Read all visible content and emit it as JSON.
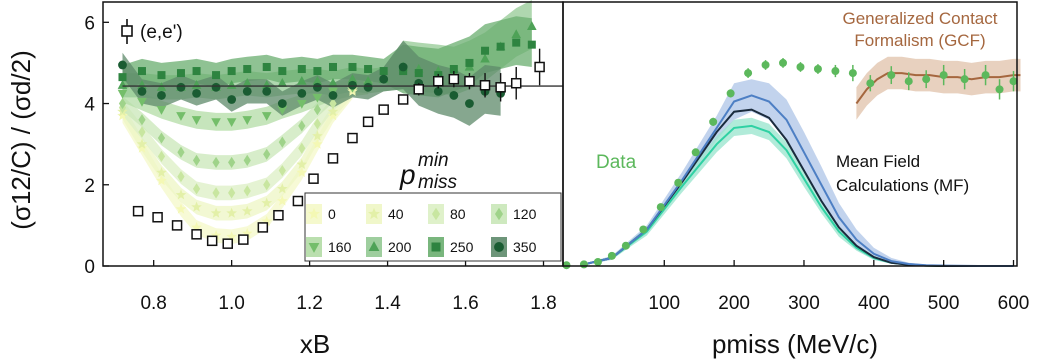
{
  "figure": {
    "y_axis_title": "(σ12/C) / (σd/2)",
    "colors": {
      "open_square": "#111111",
      "data_green": "#5cb85c",
      "gcf": "#a5673f",
      "mf_blue": "#4d7fc4",
      "mf_blue_band": "#b3c8e8",
      "mf_navy": "#1a2b3d",
      "mf_teal": "#2fd1a3",
      "mf_teal_band": "#9ee6cf",
      "reference_line": "#333333"
    }
  },
  "chart_data": [
    {
      "type": "scatter",
      "panel": "left",
      "xlabel": "xB",
      "ylabel": "(σ12/C) / (σd/2)",
      "xlim": [
        0.67,
        1.85
      ],
      "ylim": [
        0,
        6.5
      ],
      "x_ticks": [
        0.8,
        1.0,
        1.2,
        1.4,
        1.6,
        1.8
      ],
      "y_ticks": [
        0,
        2,
        4,
        6
      ],
      "grid": false,
      "reference_line_y": 4.43,
      "annotation_label": "(e,e')",
      "legend_title": "p_miss^min",
      "legend_placement": "lower-right",
      "open_square_series": {
        "name": "(e,e')",
        "x": [
          0.76,
          0.81,
          0.86,
          0.91,
          0.95,
          0.99,
          1.03,
          1.08,
          1.12,
          1.17,
          1.21,
          1.26,
          1.31,
          1.35,
          1.39,
          1.44,
          1.48,
          1.53,
          1.57,
          1.61,
          1.65,
          1.69,
          1.73,
          1.79
        ],
        "y": [
          1.35,
          1.2,
          1.0,
          0.78,
          0.62,
          0.55,
          0.65,
          0.95,
          1.25,
          1.6,
          2.15,
          2.65,
          3.15,
          3.55,
          3.85,
          4.1,
          4.35,
          4.55,
          4.6,
          4.55,
          4.45,
          4.4,
          4.5,
          4.9
        ],
        "err": [
          0.06,
          0.06,
          0.05,
          0.05,
          0.05,
          0.05,
          0.05,
          0.05,
          0.06,
          0.06,
          0.07,
          0.08,
          0.08,
          0.1,
          0.1,
          0.12,
          0.15,
          0.18,
          0.2,
          0.2,
          0.3,
          0.35,
          0.4,
          0.45
        ]
      },
      "series": [
        {
          "name": "0",
          "marker": "star",
          "color": "#f4f8b4",
          "band": "#f4f8c8",
          "x": [
            0.72,
            0.77,
            0.82,
            0.87,
            0.91,
            0.96,
            1.0,
            1.04,
            1.09,
            1.13,
            1.18,
            1.22,
            1.26,
            1.31
          ],
          "y": [
            3.7,
            2.9,
            2.1,
            1.4,
            0.95,
            0.75,
            0.72,
            0.8,
            1.1,
            1.6,
            2.3,
            3.0,
            3.7,
            4.3
          ]
        },
        {
          "name": "40",
          "marker": "star",
          "color": "#e3f0a8",
          "band": "#eef6c4",
          "x": [
            0.72,
            0.77,
            0.82,
            0.87,
            0.91,
            0.96,
            1.0,
            1.04,
            1.09,
            1.13,
            1.18,
            1.22,
            1.26,
            1.31
          ],
          "y": [
            3.8,
            3.0,
            2.3,
            1.75,
            1.45,
            1.3,
            1.3,
            1.35,
            1.55,
            1.9,
            2.5,
            3.2,
            3.8,
            4.35
          ]
        },
        {
          "name": "80",
          "marker": "diamond",
          "color": "#c8e6a0",
          "band": "#dcefc4",
          "x": [
            0.72,
            0.77,
            0.82,
            0.87,
            0.91,
            0.96,
            1.0,
            1.04,
            1.09,
            1.13,
            1.18,
            1.22,
            1.26,
            1.31
          ],
          "y": [
            3.9,
            3.3,
            2.7,
            2.2,
            1.9,
            1.8,
            1.8,
            1.85,
            2.0,
            2.35,
            2.9,
            3.5,
            4.0,
            4.4
          ]
        },
        {
          "name": "120",
          "marker": "diamond",
          "color": "#9fd38a",
          "band": "#c9e7b8",
          "x": [
            0.72,
            0.77,
            0.82,
            0.87,
            0.91,
            0.96,
            1.0,
            1.04,
            1.09,
            1.13,
            1.18,
            1.22,
            1.26,
            1.31
          ],
          "y": [
            4.0,
            3.6,
            3.15,
            2.8,
            2.6,
            2.55,
            2.55,
            2.6,
            2.75,
            3.05,
            3.45,
            3.85,
            4.2,
            4.45
          ]
        },
        {
          "name": "160",
          "marker": "tri-down",
          "color": "#74be6a",
          "band": "#b3dca5",
          "x": [
            0.72,
            0.77,
            0.82,
            0.87,
            0.91,
            0.96,
            1.0,
            1.04,
            1.09,
            1.13,
            1.18,
            1.22,
            1.26,
            1.31,
            1.35
          ],
          "y": [
            4.25,
            4.05,
            3.85,
            3.7,
            3.6,
            3.55,
            3.55,
            3.6,
            3.7,
            3.85,
            4.0,
            4.15,
            4.3,
            4.4,
            4.45
          ]
        },
        {
          "name": "200",
          "marker": "tri-up",
          "color": "#4ea257",
          "band": "#94c994",
          "x": [
            0.72,
            0.77,
            0.82,
            0.87,
            0.91,
            0.96,
            1.0,
            1.04,
            1.09,
            1.13,
            1.18,
            1.22,
            1.26,
            1.31,
            1.35,
            1.39,
            1.44,
            1.48,
            1.53,
            1.57,
            1.61,
            1.65,
            1.69,
            1.73,
            1.77
          ],
          "y": [
            4.45,
            4.45,
            4.4,
            4.4,
            4.45,
            4.4,
            4.45,
            4.5,
            4.45,
            4.5,
            4.55,
            4.55,
            4.5,
            4.6,
            4.55,
            4.6,
            4.9,
            4.85,
            4.8,
            4.75,
            4.9,
            5.1,
            5.4,
            5.7,
            5.9
          ]
        },
        {
          "name": "250",
          "marker": "square",
          "color": "#2e8440",
          "band": "#6aae6f",
          "x": [
            0.72,
            0.77,
            0.82,
            0.87,
            0.91,
            0.96,
            1.0,
            1.04,
            1.09,
            1.13,
            1.18,
            1.22,
            1.26,
            1.31,
            1.35,
            1.39,
            1.44,
            1.48,
            1.53,
            1.57,
            1.61,
            1.65,
            1.69,
            1.73,
            1.77
          ],
          "y": [
            4.65,
            4.8,
            4.7,
            4.75,
            4.8,
            4.7,
            4.8,
            4.85,
            4.9,
            4.8,
            4.85,
            4.8,
            4.9,
            4.9,
            4.85,
            4.8,
            4.8,
            4.75,
            4.7,
            4.85,
            5.0,
            5.3,
            5.4,
            5.5,
            5.45
          ]
        },
        {
          "name": "350",
          "marker": "circle",
          "color": "#1a5c32",
          "band": "#5d8a6a",
          "x": [
            0.72,
            0.77,
            0.82,
            0.87,
            0.91,
            0.96,
            1.0,
            1.04,
            1.09,
            1.13,
            1.18,
            1.22,
            1.26,
            1.31,
            1.35,
            1.39,
            1.44,
            1.48,
            1.53,
            1.57,
            1.61,
            1.65,
            1.69
          ],
          "y": [
            4.95,
            4.3,
            4.2,
            4.4,
            4.25,
            4.4,
            4.1,
            4.3,
            4.3,
            4.0,
            4.25,
            4.4,
            4.2,
            4.45,
            4.4,
            4.6,
            4.9,
            4.5,
            4.3,
            4.2,
            4.0,
            4.3,
            4.25
          ]
        }
      ]
    },
    {
      "type": "line",
      "panel": "right",
      "xlabel": "pmiss (MeV/c)",
      "xlim": [
        -45,
        605
      ],
      "ylim": [
        0,
        6.5
      ],
      "x_ticks": [
        100,
        200,
        300,
        400,
        500,
        600
      ],
      "grid": false,
      "annotations": {
        "data": "Data",
        "gcf": "Generalized Contact Formalism (GCF)",
        "mf": "Mean Field Calculations (MF)"
      },
      "data_points": {
        "name": "Data",
        "x": [
          -40,
          -15,
          5,
          25,
          45,
          70,
          95,
          120,
          145,
          170,
          195,
          220,
          245,
          270,
          295,
          320,
          345,
          370,
          395,
          425,
          450,
          475,
          500,
          530,
          560,
          580,
          600
        ],
        "y": [
          0.02,
          0.04,
          0.1,
          0.25,
          0.5,
          0.9,
          1.45,
          2.05,
          2.8,
          3.55,
          4.25,
          4.75,
          4.95,
          5.0,
          4.9,
          4.85,
          4.8,
          4.75,
          4.5,
          4.7,
          4.55,
          4.6,
          4.7,
          4.6,
          4.7,
          4.35,
          4.55
        ],
        "err": [
          0.02,
          0.03,
          0.04,
          0.05,
          0.06,
          0.07,
          0.08,
          0.08,
          0.09,
          0.1,
          0.1,
          0.12,
          0.12,
          0.12,
          0.12,
          0.12,
          0.15,
          0.2,
          0.2,
          0.22,
          0.22,
          0.22,
          0.25,
          0.25,
          0.25,
          0.25,
          0.25
        ]
      },
      "gcf_curve": {
        "x": [
          375,
          390,
          405,
          420,
          440,
          460,
          480,
          500,
          520,
          540,
          560,
          580,
          600,
          610
        ],
        "y": [
          4.0,
          4.35,
          4.6,
          4.75,
          4.75,
          4.7,
          4.7,
          4.65,
          4.65,
          4.6,
          4.65,
          4.65,
          4.7,
          4.7
        ],
        "band_half_width": 0.4
      },
      "mf_curves": [
        {
          "name": "mf-blue",
          "x": [
            -20,
            25,
            75,
            125,
            175,
            200,
            225,
            250,
            275,
            300,
            325,
            350,
            375,
            400,
            425,
            450,
            475,
            500,
            550,
            600
          ],
          "y": [
            0.02,
            0.2,
            0.9,
            2.1,
            3.4,
            4.05,
            4.2,
            4.05,
            3.6,
            2.8,
            2.0,
            1.2,
            0.65,
            0.3,
            0.12,
            0.05,
            0.02,
            0.01,
            0.0,
            0.0
          ],
          "band_up": [
            0.03,
            0.25,
            1.0,
            2.3,
            3.7,
            4.5,
            4.6,
            4.5,
            4.1,
            3.3,
            2.45,
            1.55,
            0.9,
            0.45,
            0.2,
            0.08,
            0.03,
            0.02,
            0.01,
            0.0
          ],
          "band_lo": [
            0.01,
            0.15,
            0.8,
            1.9,
            3.1,
            3.6,
            3.8,
            3.6,
            3.1,
            2.3,
            1.55,
            0.85,
            0.4,
            0.15,
            0.06,
            0.02,
            0.01,
            0.0,
            0.0,
            0.0
          ]
        },
        {
          "name": "mf-navy",
          "x": [
            -20,
            25,
            75,
            125,
            175,
            200,
            225,
            250,
            275,
            300,
            325,
            350,
            375,
            400,
            425,
            450,
            475,
            500,
            550,
            600
          ],
          "y": [
            0.02,
            0.2,
            0.9,
            2.05,
            3.3,
            3.8,
            3.85,
            3.65,
            3.1,
            2.35,
            1.6,
            0.95,
            0.5,
            0.22,
            0.08,
            0.03,
            0.01,
            0.0,
            0.0,
            0.0
          ]
        },
        {
          "name": "mf-teal",
          "x": [
            -20,
            25,
            75,
            125,
            175,
            200,
            225,
            250,
            275,
            300,
            325,
            350,
            375,
            400,
            425,
            450,
            475,
            500,
            550,
            600
          ],
          "y": [
            0.02,
            0.2,
            0.85,
            1.95,
            3.0,
            3.4,
            3.45,
            3.3,
            2.85,
            2.15,
            1.45,
            0.85,
            0.45,
            0.2,
            0.08,
            0.03,
            0.01,
            0.0,
            0.0,
            0.0
          ],
          "band_up": [
            0.03,
            0.24,
            0.95,
            2.1,
            3.2,
            3.6,
            3.65,
            3.5,
            3.05,
            2.35,
            1.6,
            0.98,
            0.52,
            0.25,
            0.1,
            0.04,
            0.02,
            0.01,
            0.0,
            0.0
          ],
          "band_lo": [
            0.01,
            0.16,
            0.75,
            1.8,
            2.8,
            3.2,
            3.25,
            3.1,
            2.65,
            1.95,
            1.3,
            0.72,
            0.38,
            0.15,
            0.06,
            0.02,
            0.01,
            0.0,
            0.0,
            0.0
          ]
        }
      ]
    }
  ]
}
